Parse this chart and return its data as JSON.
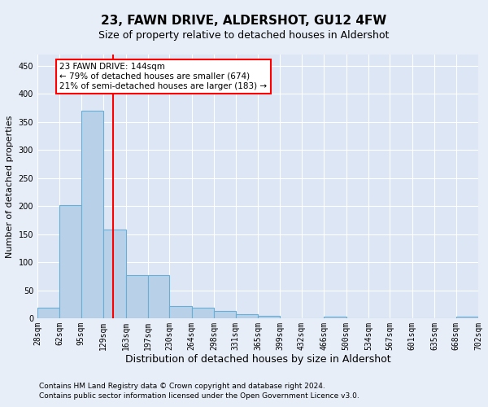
{
  "title": "23, FAWN DRIVE, ALDERSHOT, GU12 4FW",
  "subtitle": "Size of property relative to detached houses in Aldershot",
  "xlabel": "Distribution of detached houses by size in Aldershot",
  "ylabel": "Number of detached properties",
  "footnote1": "Contains HM Land Registry data © Crown copyright and database right 2024.",
  "footnote2": "Contains public sector information licensed under the Open Government Licence v3.0.",
  "bar_edges": [
    28,
    62,
    95,
    129,
    163,
    197,
    230,
    264,
    298,
    331,
    365,
    399,
    432,
    466,
    500,
    534,
    567,
    601,
    635,
    668,
    702
  ],
  "bar_heights": [
    20,
    202,
    370,
    158,
    78,
    78,
    22,
    20,
    14,
    8,
    5,
    0,
    0,
    4,
    0,
    0,
    0,
    0,
    0,
    4
  ],
  "bar_color": "#b8d0e8",
  "bar_edge_color": "#6aaed6",
  "red_line_x": 144,
  "ylim": [
    0,
    470
  ],
  "yticks": [
    0,
    50,
    100,
    150,
    200,
    250,
    300,
    350,
    400,
    450
  ],
  "annotation_title": "23 FAWN DRIVE: 144sqm",
  "annotation_line1": "← 79% of detached houses are smaller (674)",
  "annotation_line2": "21% of semi-detached houses are larger (183) →",
  "bg_color": "#e8eef8",
  "plot_bg_color": "#dce6f5",
  "grid_color": "#ffffff",
  "title_fontsize": 11,
  "subtitle_fontsize": 9,
  "ylabel_fontsize": 8,
  "xlabel_fontsize": 9,
  "tick_fontsize": 7,
  "footnote_fontsize": 6.5
}
